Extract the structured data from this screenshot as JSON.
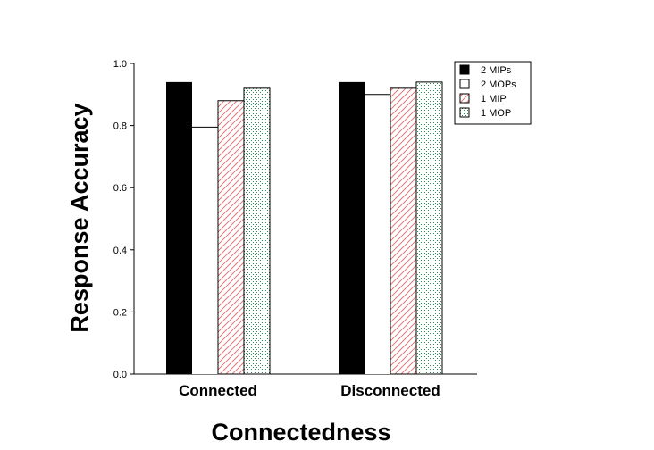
{
  "chart_data": {
    "type": "bar",
    "categories": [
      "Connected",
      "Disconnected"
    ],
    "series": [
      {
        "name": "2 MIPs",
        "values": [
          0.94,
          0.94
        ],
        "pattern": "solid",
        "color": "#000000"
      },
      {
        "name": "2 MOPs",
        "values": [
          0.795,
          0.9
        ],
        "pattern": "empty",
        "color": "#ffffff"
      },
      {
        "name": "1 MIP",
        "values": [
          0.88,
          0.92
        ],
        "pattern": "hatch",
        "color": "#e36a6a"
      },
      {
        "name": "1 MOP",
        "values": [
          0.92,
          0.94
        ],
        "pattern": "dots",
        "color": "#2e8b57"
      }
    ],
    "xlabel": "Connectedness",
    "ylabel": "Response Accuracy",
    "ylim": [
      0,
      1.0
    ],
    "yticks": [
      "0.0",
      "0.2",
      "0.4",
      "0.6",
      "0.8",
      "1.0"
    ],
    "legend_position": "top-right",
    "grid": false
  }
}
